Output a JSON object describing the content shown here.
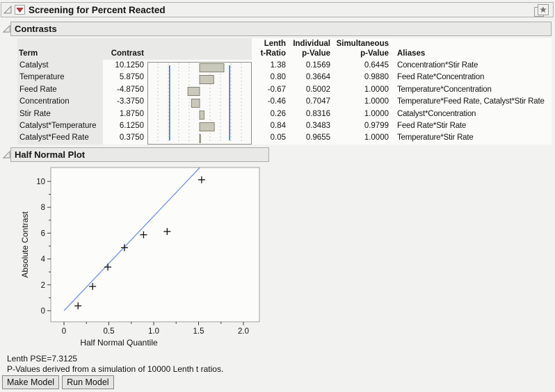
{
  "window": {
    "title": "Screening for Percent Reacted"
  },
  "icons": {
    "red_triangle_menu": "red-triangle-menu-icon",
    "disclosure_open": "disclosure-triangle-icon",
    "bookmark": "bookmark-icon"
  },
  "sections": {
    "contrasts_title": "Contrasts",
    "half_normal_title": "Half Normal Plot"
  },
  "contrasts_table": {
    "headers": {
      "term": "Term",
      "contrast": "Contrast",
      "lenth_line1": "Lenth",
      "lenth_line2": "t-Ratio",
      "individual_line1": "Individual",
      "individual_line2": "p-Value",
      "simultaneous_line1": "Simultaneous",
      "simultaneous_line2": "p-Value",
      "aliases": "Aliases"
    },
    "rows": [
      {
        "term": "Catalyst",
        "contrast": "10.1250",
        "t_ratio": "1.38",
        "individual_p": "0.1569",
        "simultaneous_p": "0.6445",
        "aliases": "Concentration*Stir Rate"
      },
      {
        "term": "Temperature",
        "contrast": "5.8750",
        "t_ratio": "0.80",
        "individual_p": "0.3664",
        "simultaneous_p": "0.9880",
        "aliases": "Feed Rate*Concentration"
      },
      {
        "term": "Feed Rate",
        "contrast": "-4.8750",
        "t_ratio": "-0.67",
        "individual_p": "0.5002",
        "simultaneous_p": "1.0000",
        "aliases": "Temperature*Concentration"
      },
      {
        "term": "Concentration",
        "contrast": "-3.3750",
        "t_ratio": "-0.46",
        "individual_p": "0.7047",
        "simultaneous_p": "1.0000",
        "aliases": "Temperature*Feed Rate, Catalyst*Stir Rate"
      },
      {
        "term": "Stir Rate",
        "contrast": "1.8750",
        "t_ratio": "0.26",
        "individual_p": "0.8316",
        "simultaneous_p": "1.0000",
        "aliases": "Catalyst*Concentration"
      },
      {
        "term": "Catalyst*Temperature",
        "contrast": "6.1250",
        "t_ratio": "0.84",
        "individual_p": "0.3483",
        "simultaneous_p": "0.9799",
        "aliases": "Feed Rate*Stir Rate"
      },
      {
        "term": "Catalyst*Feed Rate",
        "contrast": "0.3750",
        "t_ratio": "0.05",
        "individual_p": "0.9655",
        "simultaneous_p": "1.0000",
        "aliases": "Temperature*Stir Rate"
      }
    ]
  },
  "chart_data": [
    {
      "type": "bar",
      "orientation": "horizontal",
      "title": "Contrasts bar chart",
      "categories": [
        "Catalyst",
        "Temperature",
        "Feed Rate",
        "Concentration",
        "Stir Rate",
        "Catalyst*Temperature",
        "Catalyst*Feed Rate"
      ],
      "values": [
        10.125,
        5.875,
        -4.875,
        -3.375,
        1.875,
        6.125,
        0.375
      ],
      "reference_lines": [
        -12.5,
        12.5
      ],
      "xlim": [
        -21.7,
        21.7
      ],
      "grid": "dashed-vertical",
      "legend": "none"
    },
    {
      "type": "scatter",
      "title": "Half Normal Plot",
      "xlabel": "Half Normal Quantile",
      "ylabel": "Absolute Contrast",
      "marker": "plus",
      "points": [
        {
          "x": 0.157,
          "y": 0.375
        },
        {
          "x": 0.319,
          "y": 1.875
        },
        {
          "x": 0.489,
          "y": 3.375
        },
        {
          "x": 0.674,
          "y": 4.875
        },
        {
          "x": 0.887,
          "y": 5.875
        },
        {
          "x": 1.15,
          "y": 6.125
        },
        {
          "x": 1.534,
          "y": 10.125
        }
      ],
      "fit_line": {
        "slope": 7.3125,
        "intercept": 0
      },
      "x_ticks": [
        0,
        0.5,
        1,
        1.5,
        2
      ],
      "x_tick_labels": [
        "0",
        "0.5",
        "1.0",
        "1.5",
        "2.0"
      ],
      "x_minor_ticks": [
        0.25,
        0.75,
        1.25,
        1.75
      ],
      "y_ticks": [
        0,
        2,
        4,
        6,
        8,
        10
      ],
      "y_tick_labels": [
        "0",
        "2",
        "4",
        "6",
        "8",
        "10"
      ],
      "y_minor_ticks": [
        1,
        3,
        5,
        7,
        9
      ],
      "xlim": [
        -0.15,
        2.18
      ],
      "ylim": [
        -0.35,
        11.08
      ],
      "grid": "off",
      "legend": "none"
    }
  ],
  "footer": {
    "lenth_pse": "Lenth PSE=7.3125",
    "pvalue_note": "P-Values derived from a simulation of 10000 Lenth t ratios.",
    "buttons": {
      "make_model": "Make Model",
      "run_model": "Run Model"
    }
  },
  "colors": {
    "accent_red": "#c23b3b",
    "reference_blue": "#2f5fd0",
    "fit_line_blue": "#7093dd",
    "bar_fill": "#c9c9bb",
    "bar_stroke": "#82826f",
    "header_gray": "#e9e9e7"
  }
}
